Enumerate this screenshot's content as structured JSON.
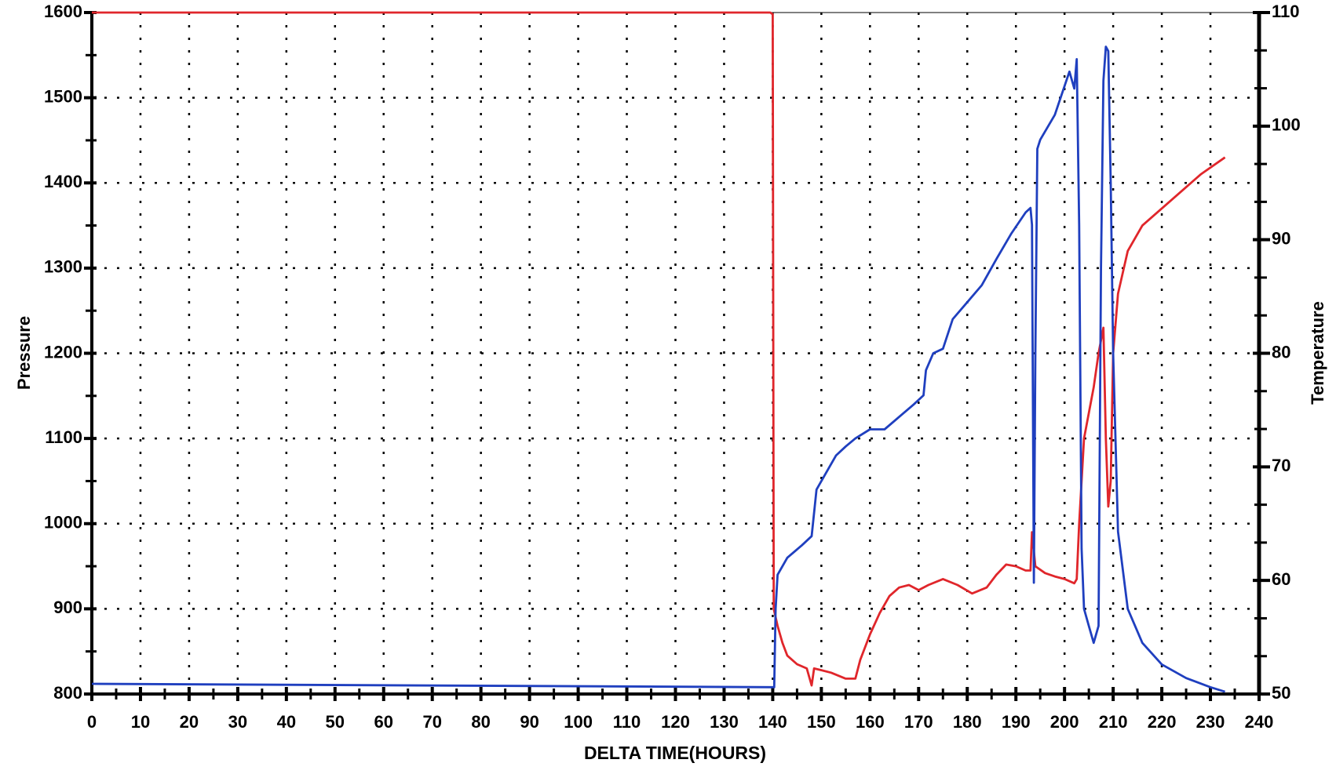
{
  "chart_data": {
    "type": "line",
    "xlabel": "DELTA TIME(HOURS)",
    "ylabel": "Pressure",
    "y2label": "Temperature",
    "xlim": [
      0,
      240
    ],
    "xticks": [
      0,
      10,
      20,
      30,
      40,
      50,
      60,
      70,
      80,
      90,
      100,
      110,
      120,
      130,
      140,
      150,
      160,
      170,
      180,
      190,
      200,
      210,
      220,
      230,
      240
    ],
    "ylim": [
      800,
      1600
    ],
    "yticks": [
      800,
      900,
      1000,
      1100,
      1200,
      1300,
      1400,
      1500,
      1600
    ],
    "y2lim": [
      50,
      110
    ],
    "y2ticks": [
      50,
      60,
      70,
      80,
      90,
      100,
      110
    ],
    "grid": true,
    "series": [
      {
        "color": "#e0262b",
        "x": [
          0,
          139.5,
          140,
          140.2,
          141,
          142,
          143,
          145,
          147,
          148,
          148.5,
          150,
          152,
          155,
          157,
          158,
          160,
          162,
          164,
          166,
          168,
          170,
          172,
          175,
          178,
          181,
          184,
          186,
          188,
          190,
          192,
          193,
          193.3,
          194,
          196,
          198,
          200,
          202,
          202.5,
          203,
          204,
          206,
          207,
          208,
          208.5,
          209,
          209.5,
          210,
          211,
          213,
          216,
          220,
          224,
          228,
          233
        ],
        "values": [
          1600,
          1600,
          1598,
          900,
          880,
          860,
          845,
          835,
          830,
          810,
          830,
          828,
          825,
          818,
          818,
          840,
          870,
          895,
          915,
          925,
          928,
          922,
          928,
          935,
          928,
          918,
          925,
          940,
          952,
          950,
          945,
          945,
          990,
          950,
          942,
          938,
          935,
          930,
          935,
          1000,
          1100,
          1160,
          1200,
          1230,
          1100,
          1020,
          1050,
          1200,
          1270,
          1320,
          1350,
          1370,
          1390,
          1410,
          1430
        ]
      },
      {
        "color": "#1f3fbf",
        "axis": "y2",
        "x": [
          0,
          140,
          140.3,
          140.6,
          141,
          143,
          146,
          148,
          149,
          151,
          153,
          155,
          157,
          160,
          163,
          166,
          169,
          171,
          171.5,
          173,
          175,
          177,
          180,
          183,
          186,
          189,
          192,
          193,
          193.3,
          193.7,
          194,
          194.4,
          195,
          198,
          201,
          202,
          202.5,
          203,
          203.5,
          204,
          205,
          206,
          207,
          207.5,
          208,
          208.5,
          209,
          209.5,
          210,
          211,
          213,
          216,
          220,
          225,
          230,
          233
        ],
        "values": [
          50.9,
          50.6,
          50.6,
          57.5,
          60.5,
          62,
          63.1,
          63.9,
          68,
          69.5,
          71,
          71.8,
          72.5,
          73.3,
          73.3,
          74.4,
          75.5,
          76.3,
          78.5,
          80,
          80.4,
          83,
          84.5,
          86,
          88.3,
          90.5,
          92.4,
          92.8,
          91.3,
          59.8,
          80,
          98,
          98.8,
          101,
          104.8,
          103.3,
          105.9,
          91.3,
          62.8,
          57.5,
          56,
          54.5,
          56,
          87.5,
          104,
          107,
          106.6,
          95,
          80,
          64.3,
          57.5,
          54.5,
          52.6,
          51.4,
          50.6,
          50.2
        ]
      }
    ]
  }
}
